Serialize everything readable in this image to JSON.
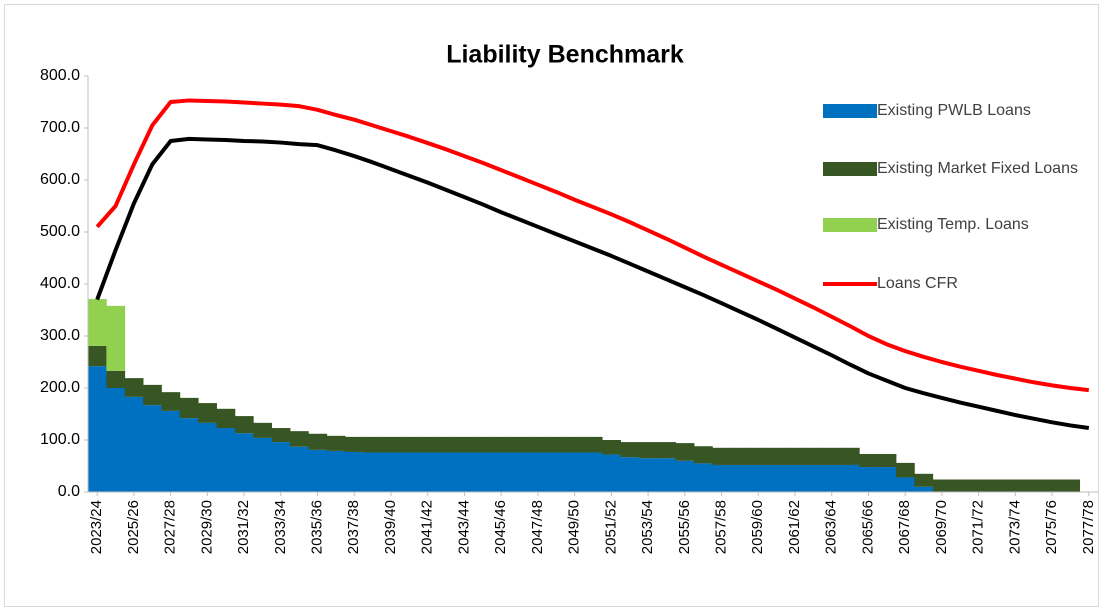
{
  "chart_data": {
    "type": "bar",
    "stacked": true,
    "title": "Liability Benchmark",
    "categories": [
      "2023/24",
      null,
      "2025/26",
      null,
      "2027/28",
      null,
      "2029/30",
      null,
      "2031/32",
      null,
      "2033/34",
      null,
      "2035/36",
      null,
      "2037/38",
      null,
      "2039/40",
      null,
      "2041/42",
      null,
      "2043/44",
      null,
      "2045/46",
      null,
      "2047/48",
      null,
      "2049/50",
      null,
      "2051/52",
      null,
      "2053/54",
      null,
      "2055/56",
      null,
      "2057/58",
      null,
      "2059/60",
      null,
      "2061/62",
      null,
      "2063/64",
      null,
      "2065/66",
      null,
      "2067/68",
      null,
      "2069/70",
      null,
      "2071/72",
      null,
      "2073/74",
      null,
      "2075/76",
      null,
      "2077/78"
    ],
    "series": [
      {
        "name": "Existing PWLB Loans",
        "type": "bar",
        "color": "#0070c0",
        "values": [
          242,
          200,
          183,
          167,
          156,
          142,
          133,
          123,
          113,
          104,
          96,
          87,
          81,
          79,
          77,
          76,
          76,
          76,
          76,
          76,
          76,
          76,
          76,
          76,
          76,
          76,
          76,
          76,
          72,
          67,
          65,
          65,
          60,
          55,
          52,
          52,
          52,
          52,
          52,
          52,
          52,
          52,
          48,
          48,
          28,
          10,
          0,
          0,
          0,
          0,
          0,
          0,
          0,
          0,
          0
        ]
      },
      {
        "name": "Existing Market Fixed Loans",
        "type": "bar",
        "color": "#375623",
        "values": [
          39,
          33,
          36,
          39,
          36,
          39,
          38,
          37,
          33,
          29,
          27,
          30,
          31,
          29,
          29,
          30,
          30,
          30,
          30,
          30,
          30,
          30,
          30,
          30,
          30,
          30,
          30,
          30,
          28,
          29,
          31,
          31,
          34,
          33,
          33,
          33,
          33,
          33,
          33,
          33,
          33,
          33,
          25,
          25,
          28,
          25,
          24,
          24,
          24,
          24,
          24,
          24,
          24,
          24,
          0
        ]
      },
      {
        "name": "Existing Temp. Loans",
        "type": "bar",
        "color": "#92d050",
        "values": [
          90,
          125,
          0,
          0,
          0,
          0,
          0,
          0,
          0,
          0,
          0,
          0,
          0,
          0,
          0,
          0,
          0,
          0,
          0,
          0,
          0,
          0,
          0,
          0,
          0,
          0,
          0,
          0,
          0,
          0,
          0,
          0,
          0,
          0,
          0,
          0,
          0,
          0,
          0,
          0,
          0,
          0,
          0,
          0,
          0,
          0,
          0,
          0,
          0,
          0,
          0,
          0,
          0,
          0,
          0
        ]
      },
      {
        "name": "Loans CFR",
        "type": "line",
        "color": "#ff0000",
        "values": [
          510,
          550,
          630,
          705,
          750,
          753,
          752,
          751,
          749,
          747,
          745,
          742,
          735,
          725,
          716,
          705,
          694,
          683,
          671,
          659,
          646,
          633,
          619,
          605,
          591,
          577,
          562,
          548,
          534,
          519,
          503,
          487,
          470,
          453,
          437,
          421,
          405,
          389,
          372,
          355,
          337,
          319,
          300,
          284,
          271,
          260,
          250,
          241,
          233,
          225,
          218,
          211,
          205,
          200,
          196
        ]
      },
      {
        "type": "line",
        "color": "#000000",
        "values": [
          370,
          465,
          555,
          630,
          675,
          679,
          678,
          677,
          675,
          674,
          672,
          669,
          667,
          657,
          646,
          634,
          621,
          608,
          595,
          581,
          567,
          553,
          538,
          524,
          510,
          496,
          482,
          468,
          454,
          439,
          424,
          409,
          394,
          379,
          363,
          347,
          331,
          314,
          297,
          280,
          263,
          245,
          228,
          214,
          200,
          190,
          181,
          172,
          164,
          156,
          148,
          141,
          134,
          128,
          123
        ]
      }
    ],
    "ylim": [
      0,
      800
    ],
    "yticks": [
      {
        "value": 0,
        "label": "0.0"
      },
      {
        "value": 100,
        "label": "100.0"
      },
      {
        "value": 200,
        "label": "200.0"
      },
      {
        "value": 300,
        "label": "300.0"
      },
      {
        "value": 400,
        "label": "400.0"
      },
      {
        "value": 500,
        "label": "500.0"
      },
      {
        "value": 600,
        "label": "600.0"
      },
      {
        "value": 700,
        "label": "700.0"
      },
      {
        "value": 800,
        "label": "800.0"
      }
    ],
    "grid": false,
    "legend": "right"
  }
}
